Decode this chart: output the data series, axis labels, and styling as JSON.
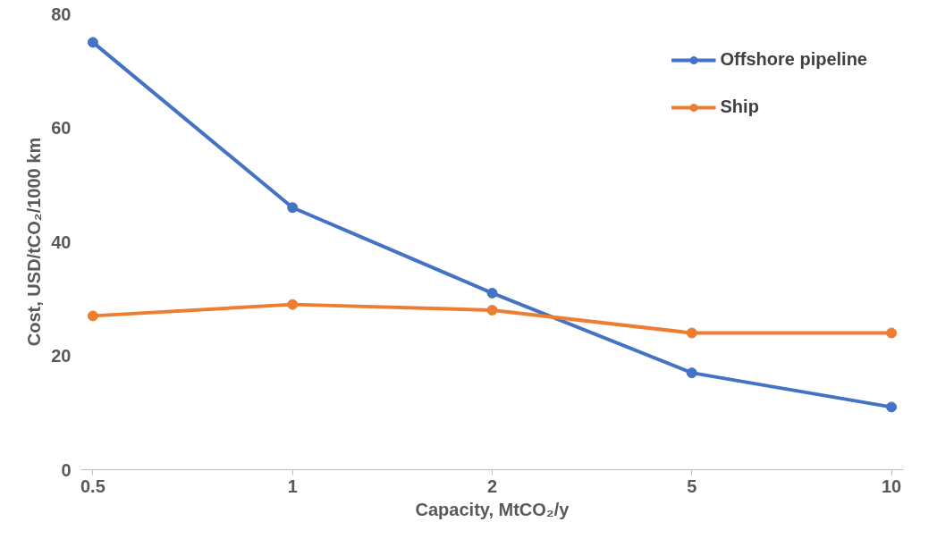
{
  "chart_data": {
    "type": "line",
    "xlabel": "Capacity, MtCO₂/y",
    "ylabel": "Cost, USD/tCO₂/1000 km",
    "categories": [
      "0.5",
      "1",
      "2",
      "5",
      "10"
    ],
    "series": [
      {
        "name": "Offshore pipeline",
        "color": "#4472c4",
        "values": [
          75,
          46,
          31,
          17,
          11
        ]
      },
      {
        "name": "Ship",
        "color": "#ed7d31",
        "values": [
          27,
          29,
          28,
          24,
          24
        ]
      }
    ],
    "ylim": [
      0,
      80
    ],
    "yticks": [
      0,
      20,
      40,
      60,
      80
    ],
    "grid": false,
    "legend": "top right",
    "marker": "circle",
    "line_style": "solid"
  }
}
